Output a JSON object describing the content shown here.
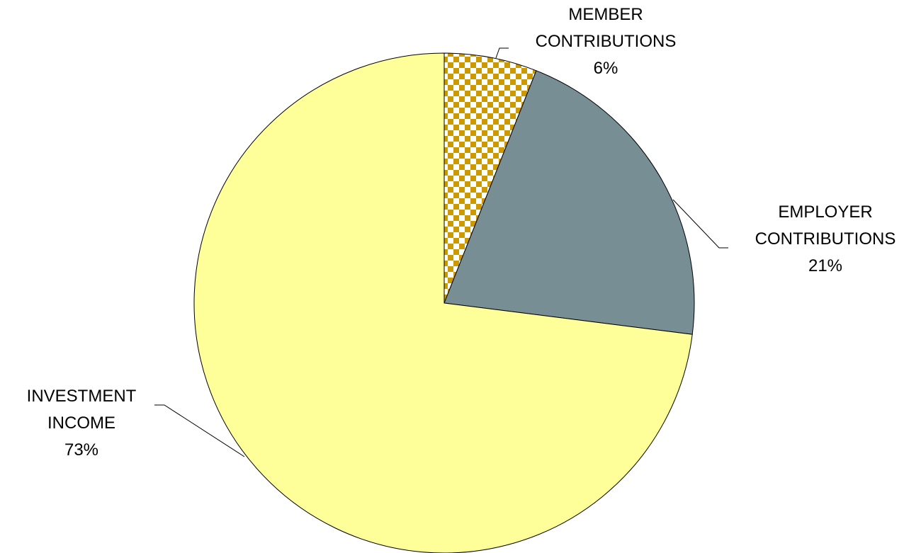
{
  "chart_data": {
    "type": "pie",
    "categories": [
      "MEMBER CONTRIBUTIONS",
      "EMPLOYER CONTRIBUTIONS",
      "INVESTMENT INCOME"
    ],
    "values": [
      6,
      21,
      73
    ],
    "value_labels": [
      "6%",
      "21%",
      "73%"
    ],
    "colors": [
      "#cc9900",
      "#778f94",
      "#ffff99"
    ]
  }
}
